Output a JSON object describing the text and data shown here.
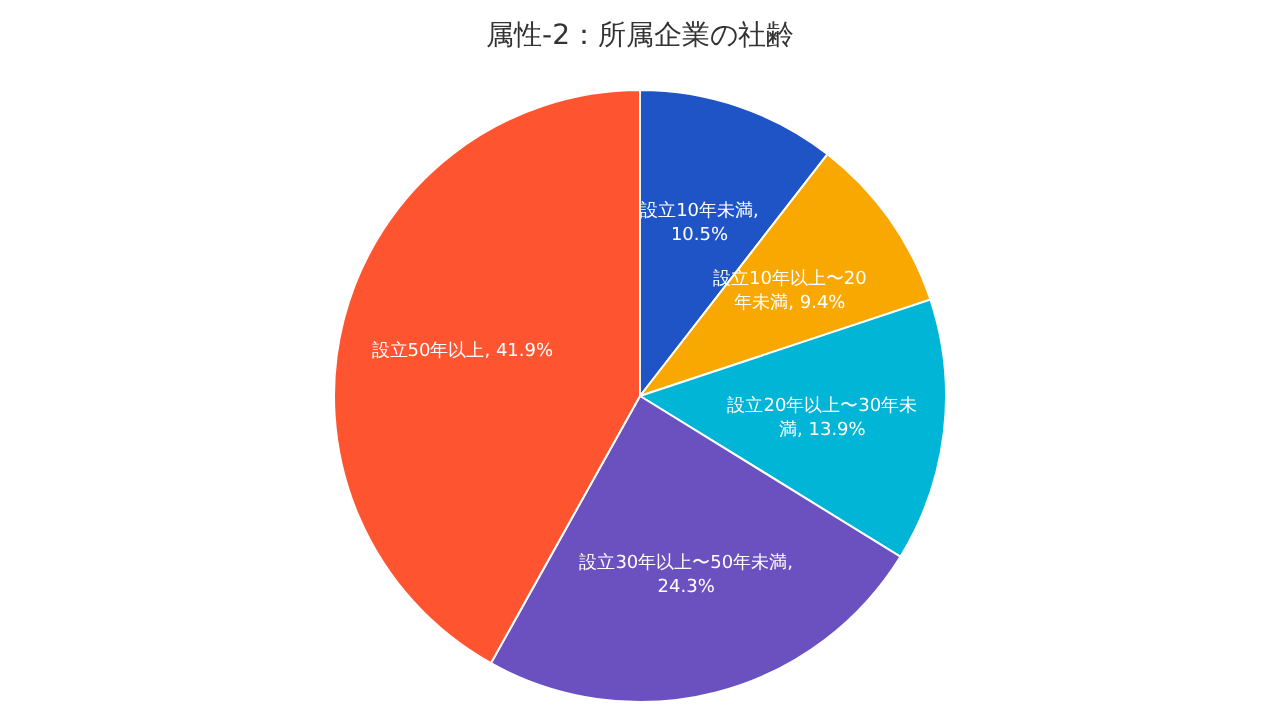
{
  "chart_data": {
    "type": "pie",
    "title": "属性-2：所属企業の社齢",
    "categories": [
      "設立10年未満",
      "設立10年以上〜20年未満",
      "設立20年以上〜30年未満",
      "設立30年以上〜50年未満",
      "設立50年以上"
    ],
    "values": [
      10.5,
      9.4,
      13.9,
      24.3,
      41.9
    ],
    "value_labels": [
      ", 10.5%",
      ", 9.4%",
      ", 13.9%",
      ", 24.3%",
      ", 41.9%"
    ],
    "colors": [
      "#1f54c6",
      "#f8a800",
      "#00b5d6",
      "#6b50c0",
      "#fe5530"
    ]
  }
}
